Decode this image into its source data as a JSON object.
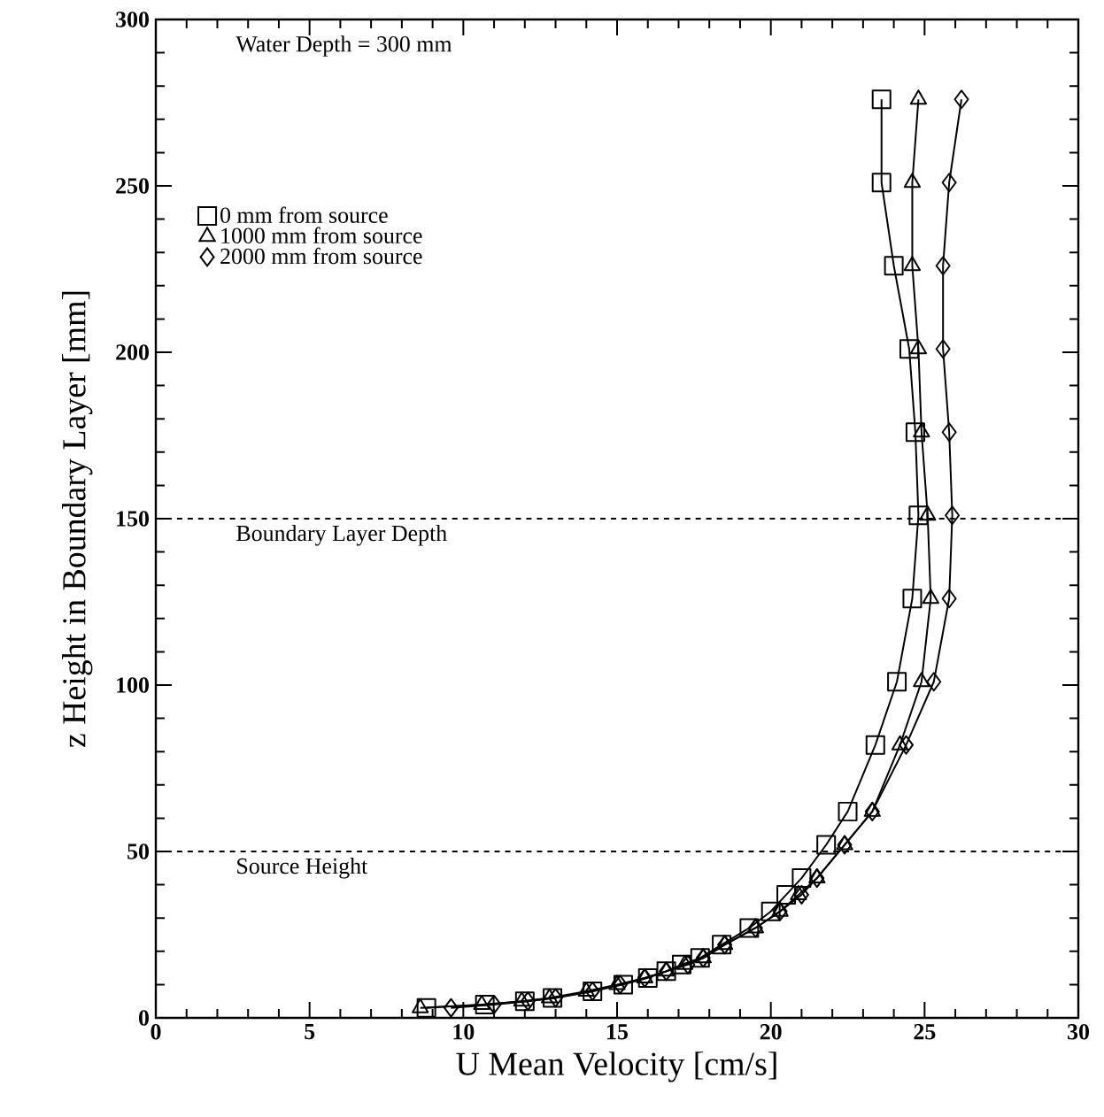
{
  "chart_data": {
    "type": "line",
    "xlabel": "U Mean Velocity [cm/s]",
    "ylabel": "z Height in Boundary Layer [mm]",
    "xlim": [
      0,
      30
    ],
    "ylim": [
      0,
      300
    ],
    "xticks": [
      0,
      5,
      10,
      15,
      20,
      25,
      30
    ],
    "yticks": [
      0,
      50,
      100,
      150,
      200,
      250,
      300
    ],
    "annotations": [
      "Water Depth = 300 mm"
    ],
    "ref_lines": [
      {
        "axis": "y",
        "value": 150,
        "label": "Boundary Layer Depth",
        "line_style": "dashed"
      },
      {
        "axis": "y",
        "value": 50,
        "label": "Source Height",
        "line_style": "dashed"
      }
    ],
    "legend": "top left",
    "grid": false,
    "line_style": "solid",
    "series": [
      {
        "name": "0 mm from source",
        "color": "#000000",
        "marker": "square",
        "x": [
          8.8,
          10.7,
          12.0,
          12.9,
          14.2,
          15.2,
          16.0,
          16.6,
          17.1,
          17.7,
          18.4,
          19.3,
          20.0,
          20.5,
          21.0,
          21.8,
          22.5,
          23.4,
          24.1,
          24.6,
          24.8,
          24.7,
          24.5,
          24.0,
          23.6,
          23.6
        ],
        "values": [
          3,
          4,
          5,
          6,
          8,
          10,
          12,
          14,
          16,
          18,
          22,
          27,
          32,
          37,
          42,
          52,
          62,
          82,
          101,
          126,
          151,
          176,
          201,
          226,
          251,
          276
        ]
      },
      {
        "name": "1000 mm from source",
        "color": "#000000",
        "marker": "triangle",
        "x": [
          8.6,
          10.6,
          11.9,
          12.8,
          14.0,
          15.0,
          15.9,
          16.6,
          17.2,
          17.8,
          18.5,
          19.5,
          20.3,
          20.9,
          21.5,
          22.4,
          23.3,
          24.2,
          24.9,
          25.2,
          25.1,
          24.9,
          24.8,
          24.6,
          24.6,
          24.8
        ],
        "values": [
          3,
          4,
          5,
          6,
          8,
          10,
          12,
          14,
          16,
          18,
          22,
          27,
          32,
          37,
          42,
          52,
          62,
          82,
          101,
          126,
          151,
          176,
          201,
          226,
          251,
          276
        ]
      },
      {
        "name": "2000 mm from source",
        "color": "#000000",
        "marker": "diamond",
        "x": [
          9.6,
          11.0,
          12.1,
          13.0,
          14.2,
          15.1,
          15.9,
          16.6,
          17.3,
          17.8,
          18.5,
          19.5,
          20.3,
          21.0,
          21.5,
          22.4,
          23.3,
          24.4,
          25.3,
          25.8,
          25.9,
          25.8,
          25.6,
          25.6,
          25.8,
          26.2
        ],
        "values": [
          3,
          4,
          5,
          6,
          8,
          10,
          12,
          14,
          16,
          18,
          22,
          27,
          32,
          37,
          42,
          52,
          62,
          82,
          101,
          126,
          151,
          176,
          201,
          226,
          251,
          276
        ]
      }
    ]
  }
}
